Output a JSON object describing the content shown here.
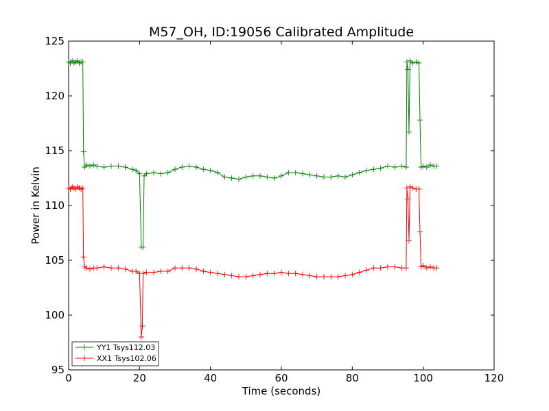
{
  "chart_data": {
    "type": "line",
    "title": "M57_OH, ID:19056 Calibrated Amplitude",
    "xlabel": "Time (seconds)",
    "ylabel": "Power in Kelvin",
    "xlim": [
      0,
      120
    ],
    "ylim": [
      95,
      125
    ],
    "xticks": [
      0,
      20,
      40,
      60,
      80,
      100,
      120
    ],
    "yticks": [
      95,
      100,
      105,
      110,
      115,
      120,
      125
    ],
    "xtick_labels": [
      "0",
      "20",
      "40",
      "60",
      "80",
      "100",
      "120"
    ],
    "ytick_labels": [
      "95",
      "100",
      "105",
      "110",
      "115",
      "120",
      "125"
    ],
    "grid": false,
    "legend": "lower-left",
    "marker": "+",
    "series": [
      {
        "name": "YY1 Tsys112.03",
        "color": "#008000",
        "points": [
          [
            0,
            123.1
          ],
          [
            0.5,
            123.0
          ],
          [
            1,
            123.2
          ],
          [
            1.5,
            123.0
          ],
          [
            2,
            123.1
          ],
          [
            2.5,
            123.2
          ],
          [
            3,
            123.0
          ],
          [
            3.5,
            123.1
          ],
          [
            4,
            123.1
          ],
          [
            4.2,
            114.9
          ],
          [
            4.5,
            113.5
          ],
          [
            5,
            113.7
          ],
          [
            6,
            113.6
          ],
          [
            7,
            113.7
          ],
          [
            8,
            113.6
          ],
          [
            10,
            113.5
          ],
          [
            12,
            113.6
          ],
          [
            14,
            113.6
          ],
          [
            16,
            113.5
          ],
          [
            18,
            113.3
          ],
          [
            19,
            113.2
          ],
          [
            20,
            112.9
          ],
          [
            20.5,
            106.2
          ],
          [
            21,
            106.2
          ],
          [
            21.3,
            112.7
          ],
          [
            22,
            112.9
          ],
          [
            24,
            113.0
          ],
          [
            26,
            112.9
          ],
          [
            28,
            113.0
          ],
          [
            30,
            113.3
          ],
          [
            32,
            113.5
          ],
          [
            34,
            113.6
          ],
          [
            36,
            113.5
          ],
          [
            38,
            113.3
          ],
          [
            40,
            113.2
          ],
          [
            42,
            113.0
          ],
          [
            44,
            112.6
          ],
          [
            46,
            112.5
          ],
          [
            48,
            112.4
          ],
          [
            50,
            112.6
          ],
          [
            52,
            112.7
          ],
          [
            54,
            112.7
          ],
          [
            56,
            112.6
          ],
          [
            58,
            112.5
          ],
          [
            60,
            112.7
          ],
          [
            62,
            113.0
          ],
          [
            64,
            113.0
          ],
          [
            66,
            112.9
          ],
          [
            68,
            112.8
          ],
          [
            70,
            112.7
          ],
          [
            72,
            112.6
          ],
          [
            74,
            112.6
          ],
          [
            76,
            112.7
          ],
          [
            78,
            112.6
          ],
          [
            80,
            112.8
          ],
          [
            82,
            113.0
          ],
          [
            84,
            113.2
          ],
          [
            86,
            113.3
          ],
          [
            88,
            113.4
          ],
          [
            90,
            113.6
          ],
          [
            92,
            113.5
          ],
          [
            94,
            113.6
          ],
          [
            95.2,
            113.5
          ],
          [
            95.4,
            123.1
          ],
          [
            95.7,
            122.4
          ],
          [
            96.0,
            116.7
          ],
          [
            96.3,
            123.2
          ],
          [
            97,
            123.0
          ],
          [
            98,
            123.1
          ],
          [
            98.8,
            123.0
          ],
          [
            99.1,
            117.8
          ],
          [
            99.4,
            113.5
          ],
          [
            100,
            113.6
          ],
          [
            101,
            113.5
          ],
          [
            102,
            113.7
          ],
          [
            103,
            113.6
          ],
          [
            103.8,
            113.6
          ]
        ]
      },
      {
        "name": "XX1 Tsys102.06",
        "color": "#ff0000",
        "points": [
          [
            0,
            111.6
          ],
          [
            0.5,
            111.5
          ],
          [
            1,
            111.7
          ],
          [
            1.5,
            111.6
          ],
          [
            2,
            111.5
          ],
          [
            2.5,
            111.7
          ],
          [
            3,
            111.6
          ],
          [
            3.5,
            111.5
          ],
          [
            4,
            111.6
          ],
          [
            4.2,
            105.3
          ],
          [
            4.5,
            104.4
          ],
          [
            5,
            104.3
          ],
          [
            6,
            104.2
          ],
          [
            7,
            104.3
          ],
          [
            8,
            104.3
          ],
          [
            10,
            104.4
          ],
          [
            12,
            104.3
          ],
          [
            14,
            104.3
          ],
          [
            16,
            104.2
          ],
          [
            18,
            104.0
          ],
          [
            19,
            104.0
          ],
          [
            20,
            103.8
          ],
          [
            20.5,
            98.0
          ],
          [
            20.8,
            99.0
          ],
          [
            21,
            103.8
          ],
          [
            22,
            103.9
          ],
          [
            24,
            103.9
          ],
          [
            26,
            104.0
          ],
          [
            28,
            104.0
          ],
          [
            30,
            104.3
          ],
          [
            32,
            104.3
          ],
          [
            34,
            104.3
          ],
          [
            36,
            104.2
          ],
          [
            38,
            104.0
          ],
          [
            40,
            103.9
          ],
          [
            42,
            103.8
          ],
          [
            44,
            103.7
          ],
          [
            46,
            103.6
          ],
          [
            48,
            103.5
          ],
          [
            50,
            103.5
          ],
          [
            52,
            103.6
          ],
          [
            54,
            103.7
          ],
          [
            56,
            103.8
          ],
          [
            58,
            103.8
          ],
          [
            60,
            103.9
          ],
          [
            62,
            103.8
          ],
          [
            64,
            103.8
          ],
          [
            66,
            103.7
          ],
          [
            68,
            103.6
          ],
          [
            70,
            103.5
          ],
          [
            72,
            103.5
          ],
          [
            74,
            103.5
          ],
          [
            76,
            103.5
          ],
          [
            78,
            103.6
          ],
          [
            80,
            103.7
          ],
          [
            82,
            103.9
          ],
          [
            84,
            104.1
          ],
          [
            86,
            104.3
          ],
          [
            88,
            104.3
          ],
          [
            90,
            104.4
          ],
          [
            92,
            104.4
          ],
          [
            94,
            104.3
          ],
          [
            95.2,
            104.3
          ],
          [
            95.4,
            111.6
          ],
          [
            95.7,
            110.6
          ],
          [
            96.0,
            106.8
          ],
          [
            96.3,
            111.7
          ],
          [
            97,
            111.6
          ],
          [
            98,
            111.5
          ],
          [
            98.8,
            111.5
          ],
          [
            99.1,
            107.6
          ],
          [
            99.4,
            104.4
          ],
          [
            100,
            104.5
          ],
          [
            101,
            104.3
          ],
          [
            102,
            104.4
          ],
          [
            103,
            104.3
          ],
          [
            103.8,
            104.3
          ]
        ]
      }
    ]
  }
}
